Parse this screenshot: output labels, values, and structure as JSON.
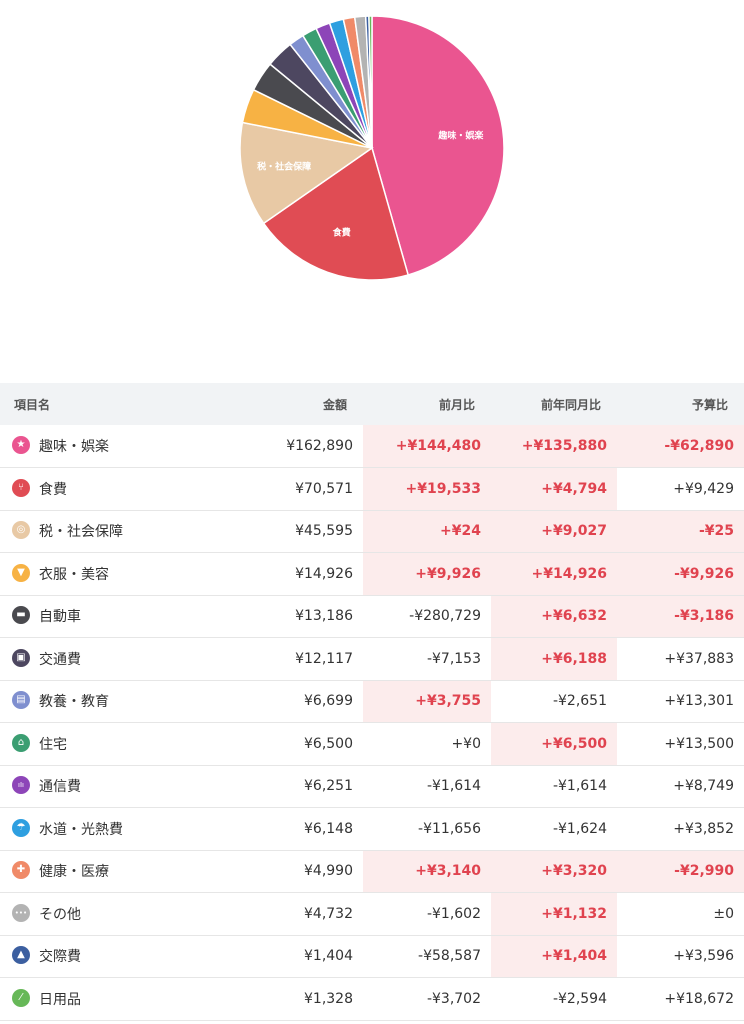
{
  "pie": {
    "slices": [
      {
        "name": "趣味・娯楽",
        "value": 162890,
        "color": "#ea5590",
        "label": "趣味・娯楽"
      },
      {
        "name": "食費",
        "value": 70571,
        "color": "#e04c54",
        "label": "食費"
      },
      {
        "name": "税・社会保障",
        "value": 45595,
        "color": "#e8c9a5",
        "label": "税・社会保障"
      },
      {
        "name": "衣服・美容",
        "value": 14926,
        "color": "#f7b244"
      },
      {
        "name": "自動車",
        "value": 13186,
        "color": "#4a4a4f"
      },
      {
        "name": "交通費",
        "value": 12117,
        "color": "#4d4760"
      },
      {
        "name": "教養・教育",
        "value": 6699,
        "color": "#7f8fcf"
      },
      {
        "name": "住宅",
        "value": 6500,
        "color": "#3b9e72"
      },
      {
        "name": "通信費",
        "value": 6251,
        "color": "#8d45b8"
      },
      {
        "name": "水道・光熱費",
        "value": 6148,
        "color": "#2e9fe0"
      },
      {
        "name": "健康・医療",
        "value": 4990,
        "color": "#f08a68"
      },
      {
        "name": "その他",
        "value": 4732,
        "color": "#b3b3b3"
      },
      {
        "name": "交際費",
        "value": 1404,
        "color": "#3c5fa0"
      },
      {
        "name": "日用品",
        "value": 1328,
        "color": "#67b858"
      }
    ]
  },
  "table": {
    "headers": {
      "name": "項目名",
      "amount": "金額",
      "prev_month": "前月比",
      "prev_year": "前年同月比",
      "budget": "予算比"
    },
    "rows": [
      {
        "icon": "star-icon",
        "icon_color": "#ea5590",
        "icon_glyph": "★",
        "name": "趣味・娯楽",
        "amount": "¥162,890",
        "prev_month": "+¥144,480",
        "prev_month_hl": true,
        "prev_year": "+¥135,880",
        "prev_year_hl": true,
        "budget": "-¥62,890",
        "budget_hl": true
      },
      {
        "icon": "fork-knife-icon",
        "icon_color": "#e04c54",
        "icon_glyph": "⑂",
        "name": "食費",
        "amount": "¥70,571",
        "prev_month": "+¥19,533",
        "prev_month_hl": true,
        "prev_year": "+¥4,794",
        "prev_year_hl": true,
        "budget": "+¥9,429",
        "budget_hl": false
      },
      {
        "icon": "coins-icon",
        "icon_color": "#e8c9a5",
        "icon_glyph": "◎",
        "name": "税・社会保障",
        "amount": "¥45,595",
        "prev_month": "+¥24",
        "prev_month_hl": true,
        "prev_year": "+¥9,027",
        "prev_year_hl": true,
        "budget": "-¥25",
        "budget_hl": true
      },
      {
        "icon": "shirt-icon",
        "icon_color": "#f7b244",
        "icon_glyph": "▼",
        "name": "衣服・美容",
        "amount": "¥14,926",
        "prev_month": "+¥9,926",
        "prev_month_hl": true,
        "prev_year": "+¥14,926",
        "prev_year_hl": true,
        "budget": "-¥9,926",
        "budget_hl": true
      },
      {
        "icon": "car-icon",
        "icon_color": "#4a4a4f",
        "icon_glyph": "▬",
        "name": "自動車",
        "amount": "¥13,186",
        "prev_month": "-¥280,729",
        "prev_month_hl": false,
        "prev_year": "+¥6,632",
        "prev_year_hl": true,
        "budget": "-¥3,186",
        "budget_hl": true
      },
      {
        "icon": "train-icon",
        "icon_color": "#4d4760",
        "icon_glyph": "▣",
        "name": "交通費",
        "amount": "¥12,117",
        "prev_month": "-¥7,153",
        "prev_month_hl": false,
        "prev_year": "+¥6,188",
        "prev_year_hl": true,
        "budget": "+¥37,883",
        "budget_hl": false
      },
      {
        "icon": "book-icon",
        "icon_color": "#7f8fcf",
        "icon_glyph": "▤",
        "name": "教養・教育",
        "amount": "¥6,699",
        "prev_month": "+¥3,755",
        "prev_month_hl": true,
        "prev_year": "-¥2,651",
        "prev_year_hl": false,
        "budget": "+¥13,301",
        "budget_hl": false
      },
      {
        "icon": "home-icon",
        "icon_color": "#3b9e72",
        "icon_glyph": "⌂",
        "name": "住宅",
        "amount": "¥6,500",
        "prev_month": "+¥0",
        "prev_month_hl": false,
        "prev_year": "+¥6,500",
        "prev_year_hl": true,
        "budget": "+¥13,500",
        "budget_hl": false
      },
      {
        "icon": "signal-icon",
        "icon_color": "#8d45b8",
        "icon_glyph": "ıIı",
        "name": "通信費",
        "amount": "¥6,251",
        "prev_month": "-¥1,614",
        "prev_month_hl": false,
        "prev_year": "-¥1,614",
        "prev_year_hl": false,
        "budget": "+¥8,749",
        "budget_hl": false
      },
      {
        "icon": "faucet-icon",
        "icon_color": "#2e9fe0",
        "icon_glyph": "☂",
        "name": "水道・光熱費",
        "amount": "¥6,148",
        "prev_month": "-¥11,656",
        "prev_month_hl": false,
        "prev_year": "-¥1,624",
        "prev_year_hl": false,
        "budget": "+¥3,852",
        "budget_hl": false
      },
      {
        "icon": "plus-icon",
        "icon_color": "#f08a68",
        "icon_glyph": "✚",
        "name": "健康・医療",
        "amount": "¥4,990",
        "prev_month": "+¥3,140",
        "prev_month_hl": true,
        "prev_year": "+¥3,320",
        "prev_year_hl": true,
        "budget": "-¥2,990",
        "budget_hl": true
      },
      {
        "icon": "more-icon",
        "icon_color": "#b3b3b3",
        "icon_glyph": "•••",
        "name": "その他",
        "amount": "¥4,732",
        "prev_month": "-¥1,602",
        "prev_month_hl": false,
        "prev_year": "+¥1,132",
        "prev_year_hl": true,
        "budget": "±0",
        "budget_hl": false
      },
      {
        "icon": "cake-icon",
        "icon_color": "#3c5fa0",
        "icon_glyph": "▲",
        "name": "交際費",
        "amount": "¥1,404",
        "prev_month": "-¥58,587",
        "prev_month_hl": false,
        "prev_year": "+¥1,404",
        "prev_year_hl": true,
        "budget": "+¥3,596",
        "budget_hl": false
      },
      {
        "icon": "pill-icon",
        "icon_color": "#67b858",
        "icon_glyph": "⁄",
        "name": "日用品",
        "amount": "¥1,328",
        "prev_month": "-¥3,702",
        "prev_month_hl": false,
        "prev_year": "-¥2,594",
        "prev_year_hl": false,
        "budget": "+¥18,672",
        "budget_hl": false
      }
    ]
  }
}
